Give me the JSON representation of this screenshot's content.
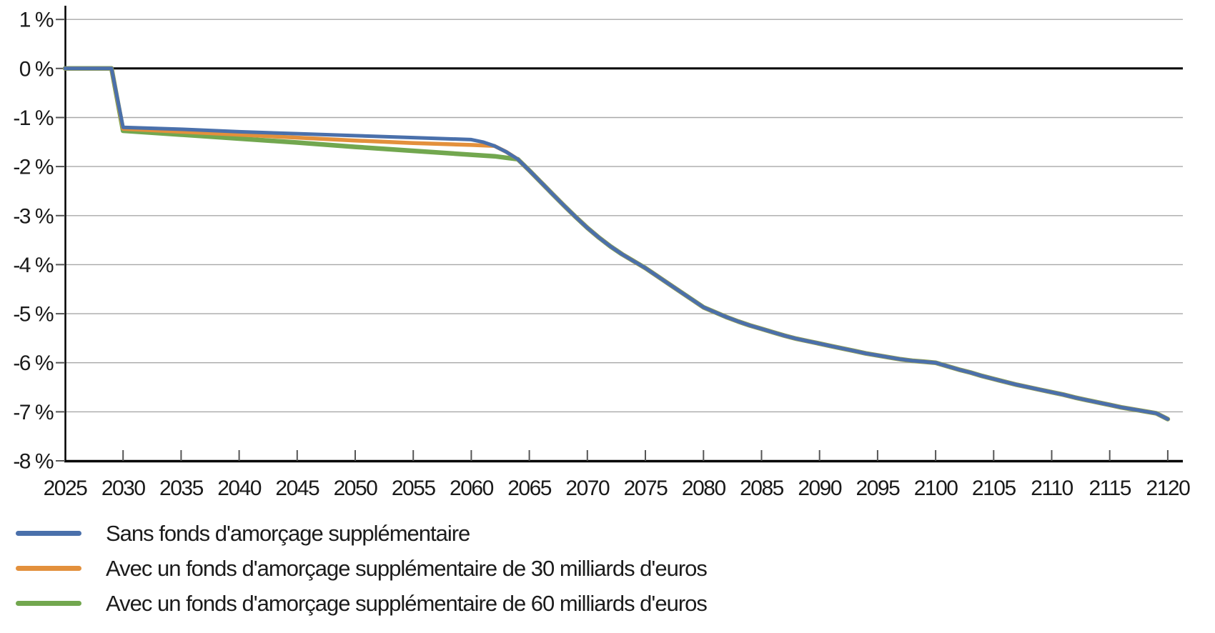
{
  "chart_data": {
    "type": "line",
    "title": "",
    "xlabel": "",
    "ylabel": "",
    "x_min": 2025,
    "x_max": 2121.3,
    "y_min": -8,
    "y_max": 1.25,
    "grid": "horizontal",
    "legend_position": "bottom-left",
    "x_ticks": [
      2025,
      2030,
      2035,
      2040,
      2045,
      2050,
      2055,
      2060,
      2065,
      2070,
      2075,
      2080,
      2085,
      2090,
      2095,
      2100,
      2105,
      2110,
      2115,
      2120
    ],
    "y_ticks": [
      {
        "value": 1,
        "label": "1 %"
      },
      {
        "value": 0,
        "label": "0 %"
      },
      {
        "value": -1,
        "label": "-1 %"
      },
      {
        "value": -2,
        "label": "-2 %"
      },
      {
        "value": -3,
        "label": "-3 %"
      },
      {
        "value": -4,
        "label": "-4 %"
      },
      {
        "value": -5,
        "label": "-5 %"
      },
      {
        "value": -6,
        "label": "-6 %"
      },
      {
        "value": -7,
        "label": "-7 %"
      },
      {
        "value": -8,
        "label": "-8 %"
      }
    ],
    "shared_tail_note": "all three series are identical from 2064 onward",
    "shared_tail": [
      [
        2064,
        -1.85
      ],
      [
        2065,
        -2.08
      ],
      [
        2066,
        -2.32
      ],
      [
        2067,
        -2.56
      ],
      [
        2068,
        -2.8
      ],
      [
        2069,
        -3.03
      ],
      [
        2070,
        -3.25
      ],
      [
        2071,
        -3.45
      ],
      [
        2072,
        -3.63
      ],
      [
        2073,
        -3.79
      ],
      [
        2074,
        -3.93
      ],
      [
        2075,
        -4.07
      ],
      [
        2076,
        -4.23
      ],
      [
        2077,
        -4.39
      ],
      [
        2078,
        -4.55
      ],
      [
        2079,
        -4.71
      ],
      [
        2080,
        -4.87
      ],
      [
        2081,
        -4.97
      ],
      [
        2082,
        -5.07
      ],
      [
        2083,
        -5.16
      ],
      [
        2084,
        -5.24
      ],
      [
        2085,
        -5.31
      ],
      [
        2086,
        -5.38
      ],
      [
        2087,
        -5.45
      ],
      [
        2088,
        -5.51
      ],
      [
        2089,
        -5.56
      ],
      [
        2090,
        -5.61
      ],
      [
        2091,
        -5.66
      ],
      [
        2092,
        -5.71
      ],
      [
        2093,
        -5.76
      ],
      [
        2094,
        -5.81
      ],
      [
        2095,
        -5.85
      ],
      [
        2096,
        -5.89
      ],
      [
        2097,
        -5.93
      ],
      [
        2098,
        -5.96
      ],
      [
        2099,
        -5.98
      ],
      [
        2100,
        -6.0
      ],
      [
        2101,
        -6.07
      ],
      [
        2102,
        -6.14
      ],
      [
        2103,
        -6.2
      ],
      [
        2104,
        -6.27
      ],
      [
        2105,
        -6.33
      ],
      [
        2106,
        -6.39
      ],
      [
        2107,
        -6.45
      ],
      [
        2108,
        -6.5
      ],
      [
        2109,
        -6.55
      ],
      [
        2110,
        -6.6
      ],
      [
        2111,
        -6.65
      ],
      [
        2112,
        -6.71
      ],
      [
        2113,
        -6.76
      ],
      [
        2114,
        -6.81
      ],
      [
        2115,
        -6.86
      ],
      [
        2116,
        -6.91
      ],
      [
        2117,
        -6.95
      ],
      [
        2118,
        -6.99
      ],
      [
        2119,
        -7.03
      ],
      [
        2120,
        -7.15
      ]
    ],
    "series": [
      {
        "id": "sans-fonds",
        "name": "Sans fonds d'amorçage supplémentaire",
        "color": "#4a70ab",
        "merge_with_shared_tail": true,
        "points": [
          [
            2025,
            0
          ],
          [
            2026,
            0
          ],
          [
            2027,
            0
          ],
          [
            2028,
            0
          ],
          [
            2029,
            0
          ],
          [
            2030,
            -1.2
          ],
          [
            2035,
            -1.24
          ],
          [
            2040,
            -1.29
          ],
          [
            2045,
            -1.33
          ],
          [
            2050,
            -1.37
          ],
          [
            2055,
            -1.41
          ],
          [
            2060,
            -1.45
          ],
          [
            2061,
            -1.5
          ],
          [
            2062,
            -1.58
          ],
          [
            2063,
            -1.7
          ]
        ]
      },
      {
        "id": "fonds-30-milliards",
        "name": "Avec un fonds d'amorçage supplémentaire de 30 milliards d'euros",
        "color": "#e3903c",
        "merge_with_shared_tail": true,
        "points": [
          [
            2025,
            0
          ],
          [
            2029,
            0
          ],
          [
            2030,
            -1.23
          ],
          [
            2035,
            -1.29
          ],
          [
            2040,
            -1.35
          ],
          [
            2045,
            -1.41
          ],
          [
            2050,
            -1.47
          ],
          [
            2055,
            -1.52
          ],
          [
            2060,
            -1.56
          ],
          [
            2062,
            -1.58
          ],
          [
            2063,
            -1.7
          ]
        ]
      },
      {
        "id": "fonds-60-milliards",
        "name": "Avec un fonds d'amorçage supplémentaire de 60 milliards d'euros",
        "color": "#72a74f",
        "merge_with_shared_tail": true,
        "points": [
          [
            2025,
            0
          ],
          [
            2029,
            0
          ],
          [
            2030,
            -1.27
          ],
          [
            2035,
            -1.35
          ],
          [
            2040,
            -1.43
          ],
          [
            2045,
            -1.51
          ],
          [
            2050,
            -1.6
          ],
          [
            2055,
            -1.68
          ],
          [
            2060,
            -1.76
          ],
          [
            2062,
            -1.79
          ],
          [
            2063,
            -1.82
          ]
        ]
      }
    ]
  },
  "legend": {
    "items": [
      {
        "label": "Sans fonds d'amorçage supplémentaire"
      },
      {
        "label": "Avec un fonds d'amorçage supplémentaire de 30 milliards d'euros"
      },
      {
        "label": "Avec un fonds d'amorçage supplémentaire de 60 milliards d'euros"
      }
    ]
  }
}
